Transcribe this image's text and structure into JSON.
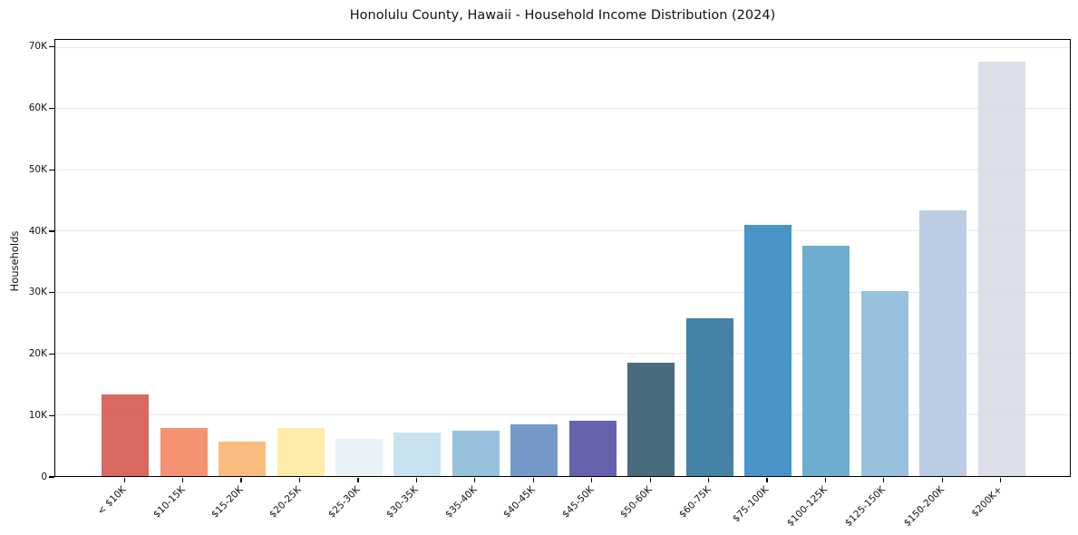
{
  "chart_data": {
    "type": "bar",
    "title": "Honolulu County, Hawaii - Household Income Distribution (2024)",
    "xlabel": "",
    "ylabel": "Households",
    "categories": [
      "< $10K",
      "$10-15K",
      "$15-20K",
      "$20-25K",
      "$25-30K",
      "$30-35K",
      "$35-40K",
      "$40-45K",
      "$45-50K",
      "$50-60K",
      "$60-75K",
      "$75-100K",
      "$100-125K",
      "$125-150K",
      "$150-200K",
      "$200K+"
    ],
    "values": [
      13400,
      7800,
      5600,
      7800,
      6100,
      7100,
      7400,
      8500,
      9000,
      18500,
      25800,
      41100,
      37600,
      30200,
      43500,
      67700
    ],
    "bar_colors": [
      "#d65c55",
      "#f48a66",
      "#fab875",
      "#fde9a0",
      "#e6f1f6",
      "#c3e0ed",
      "#90bcdc",
      "#6b92c5",
      "#5a56a7",
      "#3a6074",
      "#38799c",
      "#398dc5",
      "#62a7cc",
      "#90bcda",
      "#b7c9e1",
      "#d9dbe8"
    ],
    "ylim": [
      0,
      71300
    ],
    "ytick_values": [
      0,
      10000,
      20000,
      30000,
      40000,
      50000,
      60000,
      70000
    ],
    "ytick_labels": [
      "0",
      "10K",
      "20K",
      "30K",
      "40K",
      "50K",
      "60K",
      "70K"
    ],
    "grid": "horizontal",
    "grid_color": "#e8e8e8",
    "axis_color": "#000000",
    "text_color": "#111111",
    "background": "#ffffff",
    "legend": "none",
    "xtick_rotation_deg": 45
  }
}
